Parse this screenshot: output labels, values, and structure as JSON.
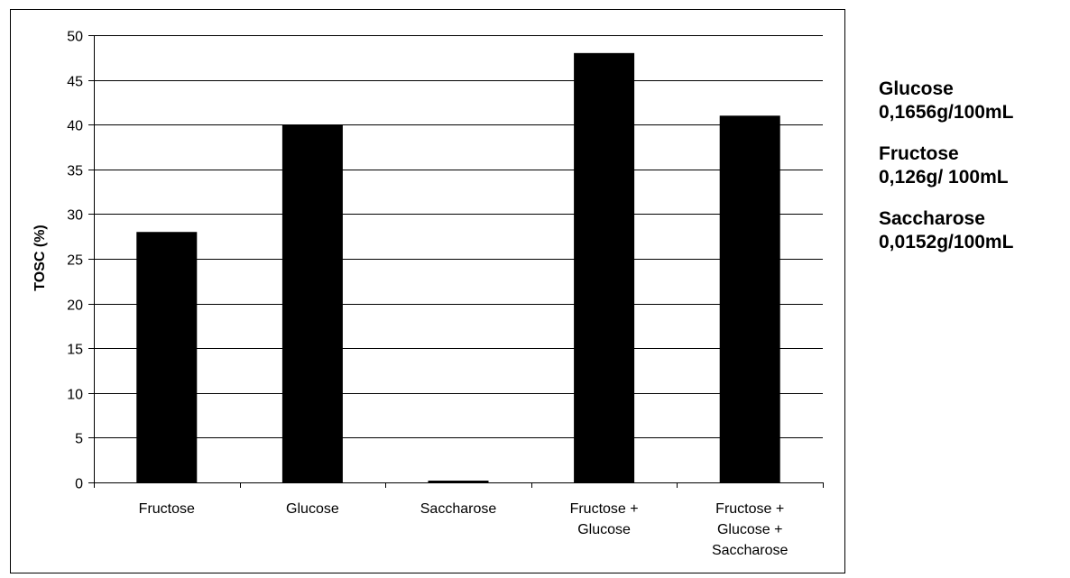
{
  "chart_data": {
    "type": "bar",
    "categories": [
      [
        "Fructose"
      ],
      [
        "Glucose"
      ],
      [
        "Saccharose"
      ],
      [
        "Fructose +",
        "Glucose"
      ],
      [
        "Fructose +",
        "Glucose +",
        "Saccharose"
      ]
    ],
    "values": [
      28,
      40,
      0.2,
      48,
      41
    ],
    "ylabel": "TOSC (%)",
    "ylim": [
      0,
      50
    ],
    "yticks": [
      0,
      5,
      10,
      15,
      20,
      25,
      30,
      35,
      40,
      45,
      50
    ],
    "grid": true,
    "bar_color": "#000000"
  },
  "notes": [
    {
      "name": "Glucose",
      "amount": "0,1656g/100mL"
    },
    {
      "name": "Fructose",
      "amount": "0,126g/ 100mL"
    },
    {
      "name": "Saccharose",
      "amount": "0,0152g/100mL"
    }
  ]
}
